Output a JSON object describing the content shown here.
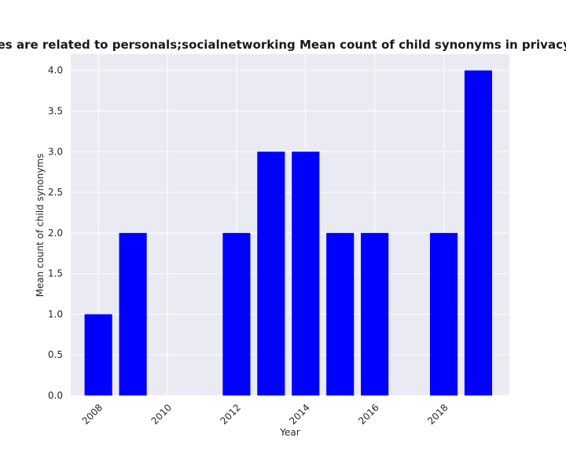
{
  "chart_data": {
    "type": "bar",
    "title": "Categories are related to personals;socialnetworking Mean count of child synonyms in privacy policies",
    "xlabel": "Year",
    "ylabel": "Mean count of child synonyms",
    "x": [
      2008,
      2009,
      2012,
      2013,
      2014,
      2015,
      2016,
      2018,
      2019
    ],
    "values": [
      1,
      2,
      2,
      3,
      3,
      2,
      2,
      2,
      4
    ],
    "xlim": [
      2007.2,
      2019.9
    ],
    "ylim": [
      0,
      4.2
    ],
    "xticks": [
      2008,
      2010,
      2012,
      2014,
      2016,
      2018
    ],
    "yticks": [
      "0.0",
      "0.5",
      "1.0",
      "1.5",
      "2.0",
      "2.5",
      "3.0",
      "3.5",
      "4.0"
    ],
    "grid": true,
    "colors": {
      "bar": "#0000ff",
      "plot_background": "#eaeaf2",
      "grid": "#ffffff"
    }
  }
}
